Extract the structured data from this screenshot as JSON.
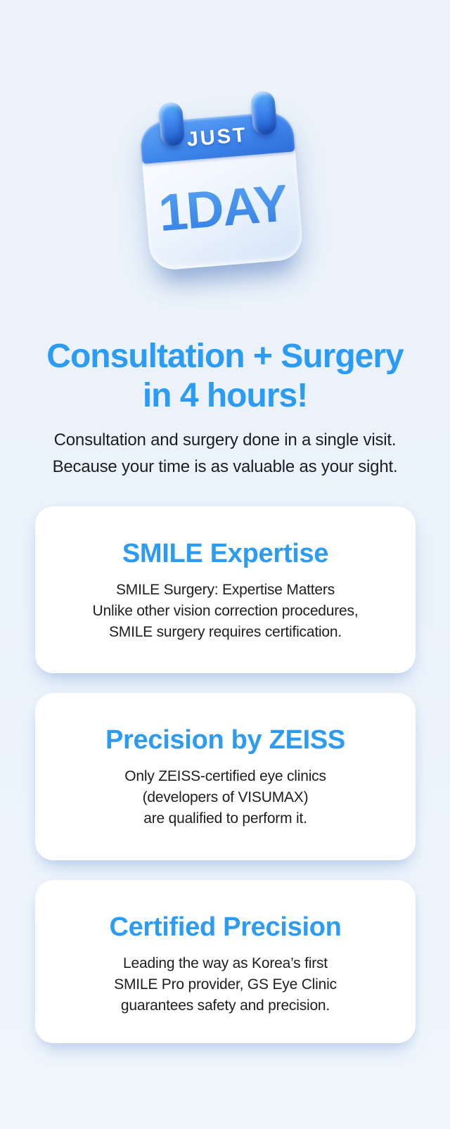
{
  "colors": {
    "accent_blue": "#2B9BF4",
    "calendar_header_blue": "#3F86EB",
    "dark_text": "#1D1E21",
    "card_background": "#FFFFFF",
    "page_background": "#EDF3FA"
  },
  "calendar_badge": {
    "top_label": "JUST",
    "main_label": "1DAY"
  },
  "hero": {
    "title_line1": "Consultation + Surgery",
    "title_line2": "in 4 hours!",
    "subtitle_line1": "Consultation and surgery done in a single visit.",
    "subtitle_line2": "Because your time is as valuable as your sight."
  },
  "cards": [
    {
      "title": "SMILE Expertise",
      "lines": [
        "SMILE Surgery: Expertise Matters",
        "Unlike other vision correction procedures,",
        "SMILE surgery requires certification."
      ]
    },
    {
      "title": "Precision by ZEISS",
      "lines": [
        "Only ZEISS-certified eye clinics",
        "(developers of VISUMAX)",
        "are qualified to perform it."
      ]
    },
    {
      "title": "Certified Precision",
      "lines": [
        "Leading the way as Korea’s first",
        "SMILE Pro provider, GS Eye Clinic",
        "guarantees safety and precision."
      ]
    }
  ]
}
